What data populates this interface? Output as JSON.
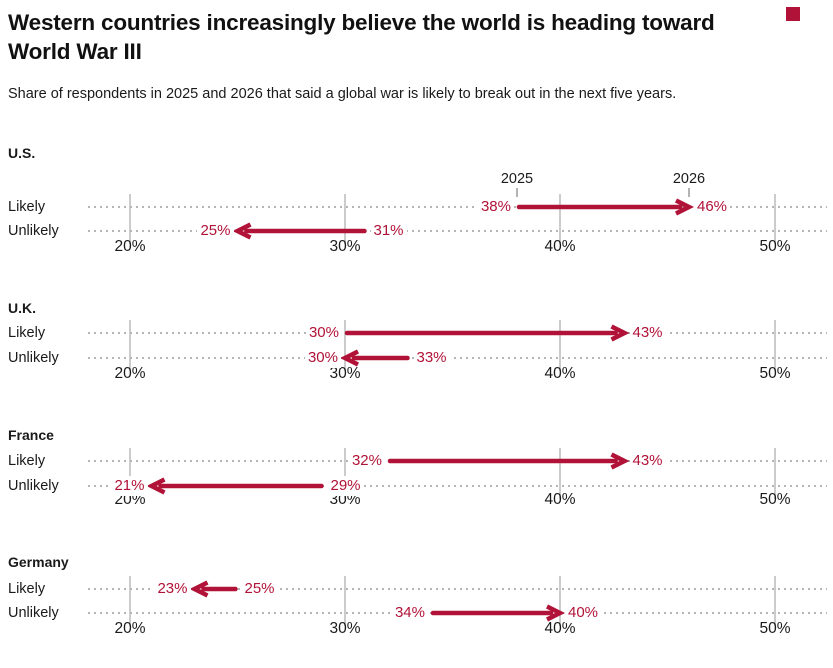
{
  "header": {
    "title_lines": [
      "Western countries increasingly believe the world is heading toward",
      "World War III"
    ],
    "subtitle": "Share of respondents in 2025 and 2026 that said a global war is likely to break out in the next five years.",
    "headline_mark_color": "#b11237"
  },
  "colors": {
    "arrow": "#b11237",
    "value_label": "#b11237",
    "vertical_grid": "#cccccc",
    "dotted_grid": "#b6b6b6",
    "text": "#1a1a1a"
  },
  "chart_data": {
    "type": "arrow",
    "description": "Paired-arrow (dumbbell) chart; each arrow points from the 2025 share to the 2026 share of respondents.",
    "years": [
      "2025",
      "2026"
    ],
    "unit": "%",
    "x_axis": {
      "min": 20,
      "max": 50,
      "tick_values": [
        20,
        30,
        40,
        50
      ],
      "tick_labels": [
        "20%",
        "30%",
        "40%",
        "50%"
      ],
      "grid": true
    },
    "row_categories": [
      "Likely",
      "Unlikely"
    ],
    "panels": [
      {
        "country": "U.S.",
        "show_year_labels": true,
        "rows": [
          {
            "label": "Likely",
            "y2025": 38,
            "y2026": 46,
            "from_label": "38%",
            "to_label": "46%"
          },
          {
            "label": "Unlikely",
            "y2025": 31,
            "y2026": 25,
            "from_label": "31%",
            "to_label": "25%"
          }
        ]
      },
      {
        "country": "U.K.",
        "show_year_labels": false,
        "rows": [
          {
            "label": "Likely",
            "y2025": 30,
            "y2026": 43,
            "from_label": "30%",
            "to_label": "43%"
          },
          {
            "label": "Unlikely",
            "y2025": 33,
            "y2026": 30,
            "from_label": "33%",
            "to_label": "30%"
          }
        ]
      },
      {
        "country": "France",
        "show_year_labels": false,
        "rows": [
          {
            "label": "Likely",
            "y2025": 32,
            "y2026": 43,
            "from_label": "32%",
            "to_label": "43%"
          },
          {
            "label": "Unlikely",
            "y2025": 29,
            "y2026": 21,
            "from_label": "29%",
            "to_label": "21%"
          }
        ]
      },
      {
        "country": "Germany",
        "show_year_labels": false,
        "rows": [
          {
            "label": "Likely",
            "y2025": 25,
            "y2026": 23,
            "from_label": "25%",
            "to_label": "23%"
          },
          {
            "label": "Unlikely",
            "y2025": 34,
            "y2026": 40,
            "from_label": "34%",
            "to_label": "40%"
          }
        ]
      }
    ]
  }
}
